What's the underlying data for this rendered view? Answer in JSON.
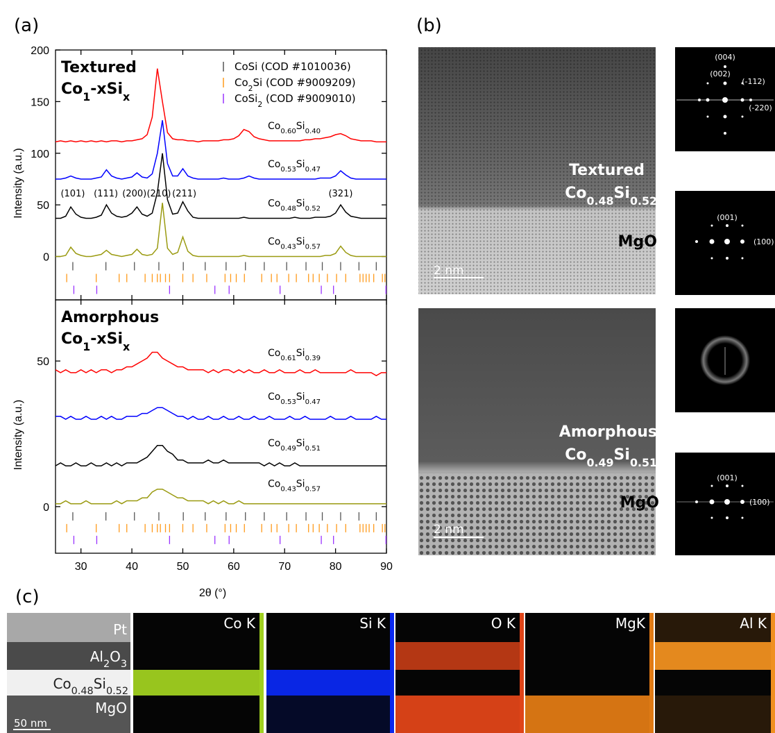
{
  "panel_labels": [
    "(a)",
    "(b)",
    "(c)"
  ],
  "chart_data": [
    {
      "type": "line",
      "title": "Textured",
      "subtitle": "Co1-xSix",
      "ylabel": "Intensity (a.u.)",
      "xlim": [
        25,
        90
      ],
      "xticks": [
        30,
        40,
        50,
        60,
        70,
        80,
        90
      ],
      "ylim": [
        -42,
        200
      ],
      "yticks": [
        0,
        50,
        100,
        150,
        200
      ],
      "legend": "upper right",
      "x": [
        25,
        26,
        27,
        28,
        29,
        30,
        31,
        32,
        33,
        34,
        35,
        36,
        37,
        38,
        39,
        40,
        41,
        42,
        43,
        44,
        45,
        46,
        47,
        48,
        49,
        50,
        51,
        52,
        53,
        54,
        55,
        56,
        57,
        58,
        59,
        60,
        61,
        62,
        63,
        64,
        65,
        66,
        67,
        68,
        69,
        70,
        71,
        72,
        73,
        74,
        75,
        76,
        77,
        78,
        79,
        80,
        81,
        82,
        83,
        84,
        85,
        86,
        87,
        88,
        89,
        90
      ],
      "series": [
        {
          "name": "Co0.60Si0.40",
          "color": "#ff0000",
          "values": [
            111,
            112,
            111,
            112,
            111,
            112,
            111,
            112,
            111,
            112,
            111,
            112,
            112,
            111,
            112,
            112,
            113,
            114,
            118,
            135,
            182,
            150,
            120,
            114,
            113,
            113,
            112,
            112,
            111,
            112,
            112,
            112,
            112,
            113,
            113,
            114,
            117,
            123,
            121,
            116,
            114,
            113,
            112,
            112,
            112,
            112,
            112,
            112,
            112,
            113,
            113,
            114,
            114,
            115,
            116,
            118,
            119,
            117,
            114,
            113,
            112,
            112,
            112,
            111,
            111,
            111
          ]
        },
        {
          "name": "Co0.53Si0.47",
          "color": "#0000ff",
          "values": [
            75,
            75,
            76,
            78,
            76,
            75,
            75,
            75,
            76,
            77,
            84,
            78,
            76,
            75,
            76,
            77,
            81,
            77,
            76,
            80,
            100,
            132,
            90,
            78,
            78,
            85,
            78,
            76,
            75,
            75,
            75,
            75,
            75,
            76,
            75,
            75,
            75,
            76,
            78,
            76,
            75,
            75,
            75,
            75,
            75,
            75,
            75,
            75,
            75,
            75,
            75,
            75,
            76,
            76,
            76,
            78,
            83,
            79,
            76,
            75,
            75,
            75,
            75,
            75,
            75,
            75
          ]
        },
        {
          "name": "Co0.48Si0.52",
          "color": "#000000",
          "values": [
            37,
            37,
            39,
            48,
            41,
            38,
            37,
            37,
            38,
            40,
            50,
            42,
            39,
            38,
            39,
            42,
            48,
            41,
            39,
            42,
            62,
            100,
            55,
            41,
            42,
            53,
            44,
            38,
            37,
            37,
            37,
            37,
            37,
            37,
            37,
            37,
            37,
            38,
            37,
            37,
            37,
            37,
            37,
            37,
            37,
            37,
            37,
            38,
            37,
            37,
            37,
            38,
            38,
            38,
            39,
            42,
            50,
            43,
            39,
            38,
            37,
            37,
            37,
            37,
            37,
            37
          ]
        },
        {
          "name": "Co0.43Si0.57",
          "color": "#9a9a10",
          "values": [
            0,
            0,
            1,
            9,
            3,
            1,
            0,
            0,
            1,
            2,
            6,
            2,
            1,
            0,
            1,
            2,
            7,
            2,
            1,
            2,
            8,
            52,
            8,
            2,
            4,
            19,
            5,
            1,
            0,
            0,
            0,
            0,
            0,
            0,
            0,
            0,
            0,
            1,
            0,
            0,
            0,
            0,
            0,
            0,
            0,
            0,
            0,
            0,
            0,
            0,
            0,
            0,
            0,
            1,
            1,
            3,
            10,
            4,
            1,
            0,
            0,
            0,
            0,
            0,
            0,
            0
          ]
        }
      ],
      "annotations": [
        {
          "text": "(101)",
          "x": 28.4
        },
        {
          "text": "(111)",
          "x": 34.9
        },
        {
          "text": "(200)",
          "x": 40.5
        },
        {
          "text": "(210)",
          "x": 45.3
        },
        {
          "text": "(211)",
          "x": 50.3
        },
        {
          "text": "(321)",
          "x": 81.0
        }
      ],
      "references": [
        {
          "name": "CoSi (COD #1010036)",
          "color": "#555555",
          "positions": [
            28.4,
            34.9,
            40.5,
            45.3,
            50.1,
            54.4,
            58.5,
            62.3,
            66.0,
            70.4,
            74.2,
            77.4,
            81.0,
            84.6,
            88.0
          ]
        },
        {
          "name": "Co2Si (COD #9009209)",
          "color": "#ff9a1a",
          "positions": [
            27.2,
            33.0,
            37.5,
            39.0,
            42.6,
            44.0,
            45.0,
            45.6,
            46.6,
            47.4,
            50.0,
            52.0,
            54.7,
            58.3,
            59.4,
            60.5,
            62.1,
            65.5,
            67.4,
            68.5,
            70.8,
            72.3,
            74.7,
            75.6,
            76.8,
            78.4,
            80.2,
            82.0,
            84.8,
            85.4,
            86.0,
            86.6,
            87.5,
            89.2,
            89.7
          ]
        },
        {
          "name": "CoSi2 (COD #9009010)",
          "color": "#9933ff",
          "positions": [
            28.6,
            33.1,
            47.4,
            56.3,
            59.1,
            69.1,
            77.2,
            79.6,
            89.9
          ]
        }
      ]
    },
    {
      "type": "line",
      "title": "Amorphous",
      "subtitle": "Co1-xSix",
      "ylabel": "Intensity (a.u.)",
      "xlabel": "2θ (°)",
      "xlim": [
        25,
        90
      ],
      "xticks": [
        30,
        40,
        50,
        60,
        70,
        80,
        90
      ],
      "ylim": [
        -16,
        71
      ],
      "yticks": [
        0,
        50
      ],
      "x": [
        25,
        26,
        27,
        28,
        29,
        30,
        31,
        32,
        33,
        34,
        35,
        36,
        37,
        38,
        39,
        40,
        41,
        42,
        43,
        44,
        45,
        46,
        47,
        48,
        49,
        50,
        51,
        52,
        53,
        54,
        55,
        56,
        57,
        58,
        59,
        60,
        61,
        62,
        63,
        64,
        65,
        66,
        67,
        68,
        69,
        70,
        71,
        72,
        73,
        74,
        75,
        76,
        77,
        78,
        79,
        80,
        81,
        82,
        83,
        84,
        85,
        86,
        87,
        88,
        89,
        90
      ],
      "series": [
        {
          "name": "Co0.61Si0.39",
          "color": "#ff0000",
          "values": [
            47,
            46,
            47,
            46,
            46,
            47,
            46,
            47,
            46,
            47,
            47,
            46,
            47,
            47,
            48,
            48,
            49,
            50,
            51,
            53,
            53,
            51,
            50,
            49,
            48,
            48,
            47,
            47,
            47,
            47,
            46,
            47,
            46,
            47,
            47,
            46,
            47,
            46,
            47,
            46,
            46,
            47,
            46,
            46,
            47,
            46,
            46,
            46,
            47,
            46,
            46,
            47,
            46,
            46,
            46,
            46,
            46,
            46,
            47,
            46,
            46,
            46,
            46,
            45,
            46,
            46
          ]
        },
        {
          "name": "Co0.53Si0.47",
          "color": "#0000ff",
          "values": [
            31,
            31,
            30,
            31,
            30,
            30,
            31,
            30,
            30,
            31,
            30,
            31,
            30,
            30,
            31,
            31,
            31,
            32,
            32,
            33,
            34,
            34,
            33,
            32,
            31,
            31,
            30,
            31,
            30,
            30,
            31,
            30,
            30,
            31,
            30,
            30,
            31,
            30,
            30,
            31,
            30,
            30,
            31,
            30,
            30,
            30,
            31,
            30,
            30,
            31,
            30,
            30,
            30,
            30,
            31,
            30,
            30,
            30,
            31,
            30,
            30,
            30,
            30,
            31,
            30,
            30
          ]
        },
        {
          "name": "Co0.49Si0.51",
          "color": "#000000",
          "values": [
            14,
            15,
            14,
            14,
            15,
            14,
            14,
            15,
            14,
            14,
            15,
            14,
            15,
            14,
            15,
            15,
            15,
            16,
            17,
            19,
            21,
            21,
            19,
            18,
            16,
            16,
            15,
            15,
            15,
            15,
            16,
            15,
            15,
            16,
            15,
            15,
            15,
            15,
            15,
            15,
            15,
            14,
            15,
            14,
            15,
            14,
            14,
            15,
            14,
            14,
            14,
            14,
            14,
            14,
            14,
            14,
            14,
            14,
            14,
            14,
            14,
            14,
            14,
            14,
            14,
            14
          ]
        },
        {
          "name": "Co0.43Si0.57",
          "color": "#9a9a10",
          "values": [
            1,
            1,
            2,
            1,
            1,
            1,
            2,
            1,
            1,
            1,
            1,
            1,
            2,
            1,
            2,
            2,
            2,
            3,
            3,
            5,
            6,
            6,
            5,
            4,
            3,
            3,
            2,
            2,
            2,
            2,
            1,
            2,
            1,
            2,
            1,
            1,
            2,
            1,
            1,
            1,
            1,
            1,
            1,
            1,
            1,
            1,
            1,
            1,
            1,
            1,
            1,
            1,
            1,
            1,
            1,
            1,
            1,
            1,
            1,
            1,
            1,
            1,
            1,
            1,
            1,
            1
          ]
        }
      ]
    }
  ],
  "panel_b": {
    "textured": {
      "label": "Textured",
      "formula": "Co0.48Si0.52",
      "substrate": "MgO",
      "scale_bar": "2 nm",
      "fft_film": [
        "(004)",
        "(002)",
        "(-112)",
        "(-220)"
      ],
      "fft_substrate": [
        "(001)",
        "(100)"
      ]
    },
    "amorphous": {
      "label": "Amorphous",
      "formula": "Co0.49Si0.51",
      "substrate": "MgO",
      "scale_bar": "2 nm",
      "fft_substrate": [
        "(001)",
        "(100)"
      ]
    }
  },
  "panel_c": {
    "layers": [
      "Pt",
      "Al2O3",
      "Co0.48Si0.52",
      "MgO"
    ],
    "scale_bar": "50 nm",
    "maps": [
      {
        "label": "Co K",
        "color": "#a0d020"
      },
      {
        "label": "Si K",
        "color": "#0a28f0"
      },
      {
        "label": "O K",
        "color": "#e04418"
      },
      {
        "label": "MgK",
        "color": "#e07a14"
      },
      {
        "label": "Al K",
        "color": "#f09020"
      }
    ]
  }
}
